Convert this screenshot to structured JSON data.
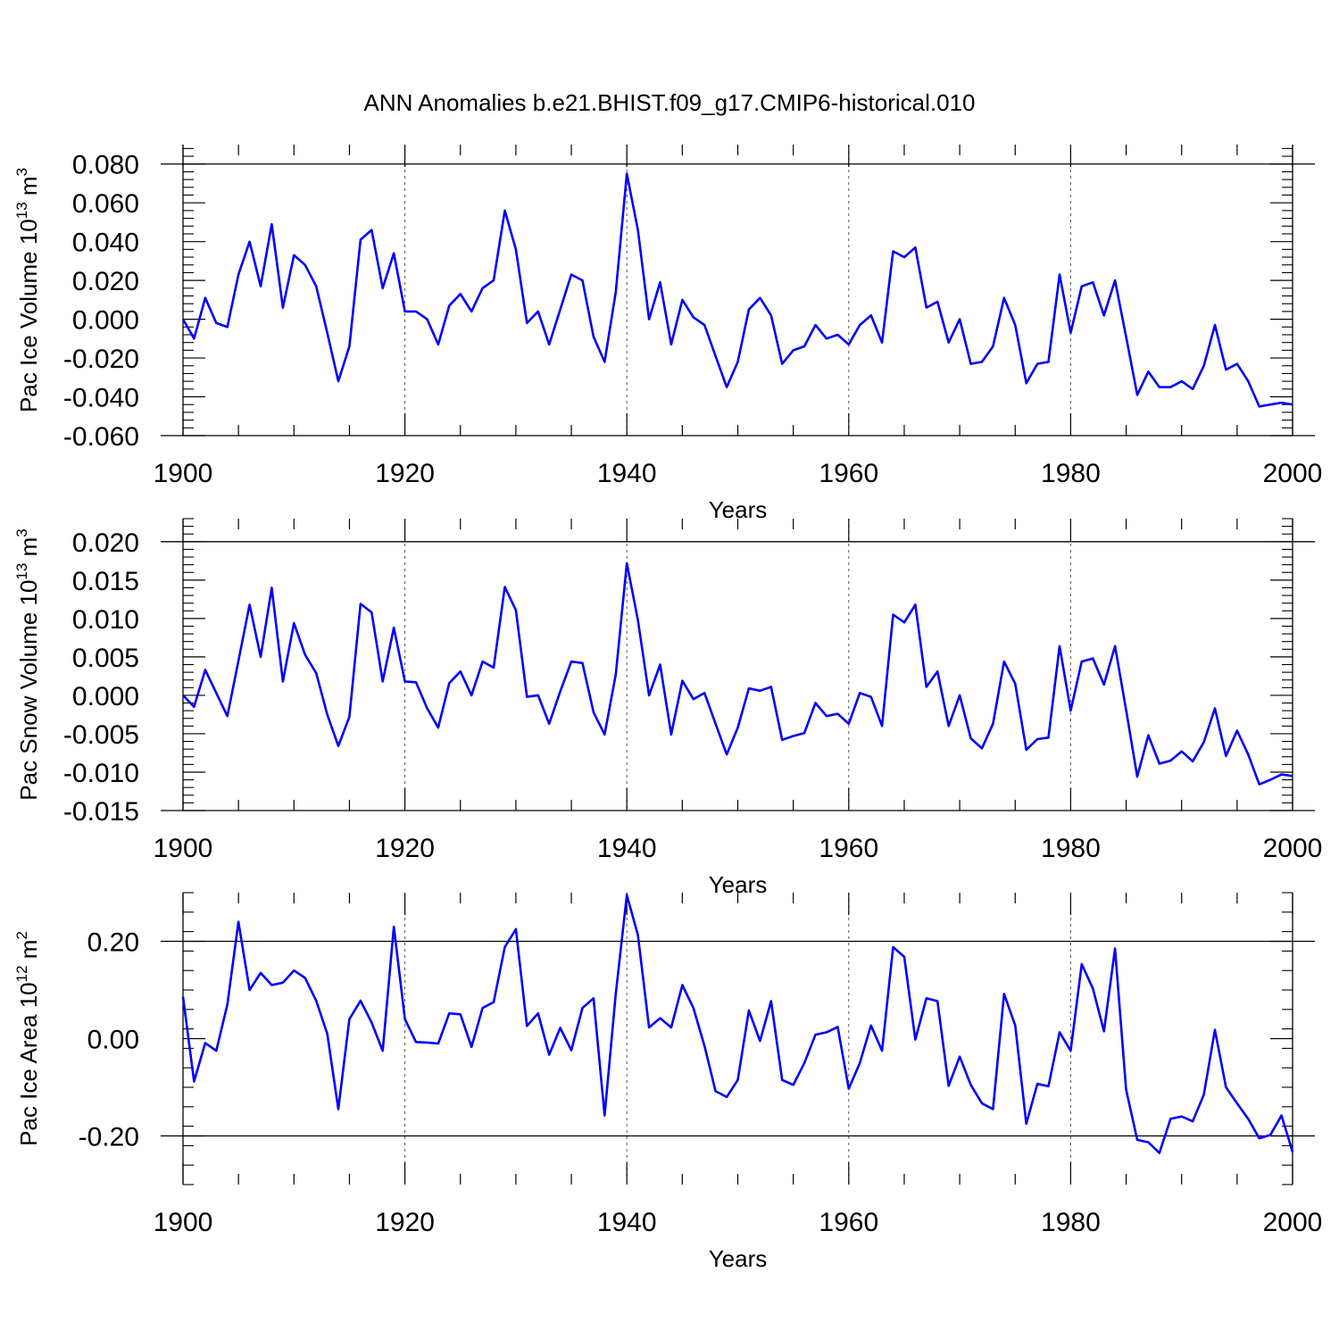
{
  "title": "ANN Anomalies b.e21.BHIST.f09_g17.CMIP6-historical.010",
  "colors": {
    "line": "#0000ff",
    "axis": "#000000",
    "refline": "#555555"
  },
  "chart_data": [
    {
      "type": "line",
      "ylabel": "Pac Ice Volume 10",
      "ylabel_exp": "13",
      "ylabel_unit": " m",
      "ylabel_unit_exp": "3",
      "xlabel": "Years",
      "xlim": [
        1900,
        2000
      ],
      "ylim": [
        -0.06,
        0.09
      ],
      "yticks": [
        -0.06,
        -0.04,
        -0.02,
        0.0,
        0.02,
        0.04,
        0.06,
        0.08
      ],
      "ytick_labels": [
        "-0.060",
        "-0.040",
        "-0.020",
        "0.000",
        "0.020",
        "0.040",
        "0.060",
        "0.080"
      ],
      "xticks": [
        1900,
        1920,
        1940,
        1960,
        1980,
        2000
      ],
      "xtick_labels": [
        "1900",
        "1920",
        "1940",
        "1960",
        "1980",
        "2000"
      ],
      "ref_lines_x": [
        1920,
        1940,
        1960,
        1980
      ],
      "x_start": 1900,
      "values": [
        0.0,
        -0.01,
        0.011,
        -0.002,
        -0.004,
        0.023,
        0.04,
        0.017,
        0.049,
        0.006,
        0.033,
        0.028,
        0.017,
        -0.007,
        -0.032,
        -0.014,
        0.041,
        0.046,
        0.016,
        0.034,
        0.004,
        0.004,
        0.0,
        -0.013,
        0.007,
        0.013,
        0.004,
        0.016,
        0.02,
        0.056,
        0.036,
        -0.002,
        0.004,
        -0.013,
        0.005,
        0.023,
        0.02,
        -0.009,
        -0.022,
        0.014,
        0.075,
        0.046,
        0.0,
        0.019,
        -0.013,
        0.01,
        0.001,
        -0.003,
        -0.019,
        -0.035,
        -0.022,
        0.005,
        0.011,
        0.002,
        -0.023,
        -0.016,
        -0.014,
        -0.003,
        -0.01,
        -0.008,
        -0.013,
        -0.003,
        0.002,
        -0.012,
        0.035,
        0.032,
        0.037,
        0.006,
        0.009,
        -0.012,
        0.0,
        -0.023,
        -0.022,
        -0.014,
        0.011,
        -0.003,
        -0.033,
        -0.023,
        -0.022,
        0.023,
        -0.007,
        0.017,
        0.019,
        0.002,
        0.02,
        -0.009,
        -0.039,
        -0.027,
        -0.035,
        -0.035,
        -0.032,
        -0.036,
        -0.024,
        -0.003,
        -0.026,
        -0.023,
        -0.032,
        -0.045,
        -0.044,
        -0.043,
        -0.044
      ]
    },
    {
      "type": "line",
      "ylabel": "Pac Snow Volume 10",
      "ylabel_exp": "13",
      "ylabel_unit": " m",
      "ylabel_unit_exp": "3",
      "xlabel": "Years",
      "xlim": [
        1900,
        2000
      ],
      "ylim": [
        -0.015,
        0.023
      ],
      "yticks": [
        -0.015,
        -0.01,
        -0.005,
        0.0,
        0.005,
        0.01,
        0.015,
        0.02
      ],
      "ytick_labels": [
        "-0.015",
        "-0.010",
        "-0.005",
        "0.000",
        "0.005",
        "0.010",
        "0.015",
        "0.020"
      ],
      "xticks": [
        1900,
        1920,
        1940,
        1960,
        1980,
        2000
      ],
      "xtick_labels": [
        "1900",
        "1920",
        "1940",
        "1960",
        "1980",
        "2000"
      ],
      "ref_lines_x": [
        1920,
        1940,
        1960,
        1980
      ],
      "x_start": 1900,
      "values": [
        0.0,
        -0.0015,
        0.0033,
        0.0003,
        -0.0027,
        0.0045,
        0.0118,
        0.005,
        0.014,
        0.0018,
        0.0094,
        0.0053,
        0.0029,
        -0.0025,
        -0.0066,
        -0.0028,
        0.0119,
        0.0108,
        0.0018,
        0.0088,
        0.0018,
        0.0017,
        -0.0017,
        -0.0042,
        0.0016,
        0.0031,
        0.0,
        0.0044,
        0.0036,
        0.0141,
        0.0111,
        -0.0002,
        0.0,
        -0.0037,
        0.0005,
        0.0044,
        0.0042,
        -0.0022,
        -0.0051,
        0.0027,
        0.0172,
        0.0098,
        0.0,
        0.004,
        -0.0051,
        0.0019,
        -0.0005,
        0.0003,
        -0.0037,
        -0.0077,
        -0.0042,
        0.0009,
        0.0006,
        0.0011,
        -0.0058,
        -0.0053,
        -0.0049,
        -0.001,
        -0.0027,
        -0.0024,
        -0.0037,
        0.0003,
        -0.0002,
        -0.004,
        0.0105,
        0.0095,
        0.0118,
        0.0011,
        0.0031,
        -0.004,
        0.0,
        -0.0056,
        -0.0069,
        -0.0037,
        0.0044,
        0.0015,
        -0.0071,
        -0.0057,
        -0.0055,
        0.0064,
        -0.002,
        0.0044,
        0.0048,
        0.0014,
        0.0064,
        -0.0019,
        -0.0106,
        -0.0052,
        -0.0089,
        -0.0085,
        -0.0073,
        -0.0086,
        -0.0061,
        -0.0017,
        -0.0079,
        -0.0046,
        -0.0077,
        -0.0116,
        -0.011,
        -0.0103,
        -0.0105
      ]
    },
    {
      "type": "line",
      "ylabel": "Pac Ice Area 10",
      "ylabel_exp": "12",
      "ylabel_unit": " m",
      "ylabel_unit_exp": "2",
      "xlabel": "Years",
      "xlim": [
        1900,
        2000
      ],
      "ylim": [
        -0.3,
        0.3
      ],
      "yticks": [
        -0.2,
        0.0,
        0.2
      ],
      "ytick_labels": [
        "-0.20",
        "0.00",
        "0.20"
      ],
      "xticks": [
        1900,
        1920,
        1940,
        1960,
        1980,
        2000
      ],
      "xtick_labels": [
        "1900",
        "1920",
        "1940",
        "1960",
        "1980",
        "2000"
      ],
      "ref_lines_x": [
        1920,
        1940,
        1960,
        1980
      ],
      "x_start": 1900,
      "values": [
        0.086,
        -0.088,
        -0.009,
        -0.025,
        0.07,
        0.24,
        0.1,
        0.135,
        0.11,
        0.115,
        0.14,
        0.125,
        0.078,
        0.01,
        -0.145,
        0.04,
        0.078,
        0.033,
        -0.025,
        0.23,
        0.04,
        -0.007,
        -0.008,
        -0.01,
        0.052,
        0.05,
        -0.017,
        0.063,
        0.075,
        0.188,
        0.225,
        0.026,
        0.052,
        -0.033,
        0.022,
        -0.024,
        0.063,
        0.083,
        -0.158,
        0.092,
        0.295,
        0.213,
        0.023,
        0.042,
        0.023,
        0.11,
        0.063,
        -0.015,
        -0.108,
        -0.12,
        -0.085,
        0.058,
        -0.005,
        0.077,
        -0.085,
        -0.095,
        -0.05,
        0.008,
        0.013,
        0.024,
        -0.103,
        -0.05,
        0.027,
        -0.025,
        0.188,
        0.168,
        -0.002,
        0.083,
        0.077,
        -0.097,
        -0.037,
        -0.095,
        -0.133,
        -0.145,
        0.092,
        0.027,
        -0.175,
        -0.093,
        -0.098,
        0.013,
        -0.025,
        0.153,
        0.103,
        0.015,
        0.185,
        -0.105,
        -0.208,
        -0.213,
        -0.235,
        -0.165,
        -0.16,
        -0.17,
        -0.115,
        0.018,
        -0.1,
        -0.133,
        -0.165,
        -0.205,
        -0.198,
        -0.158,
        -0.233
      ]
    }
  ]
}
